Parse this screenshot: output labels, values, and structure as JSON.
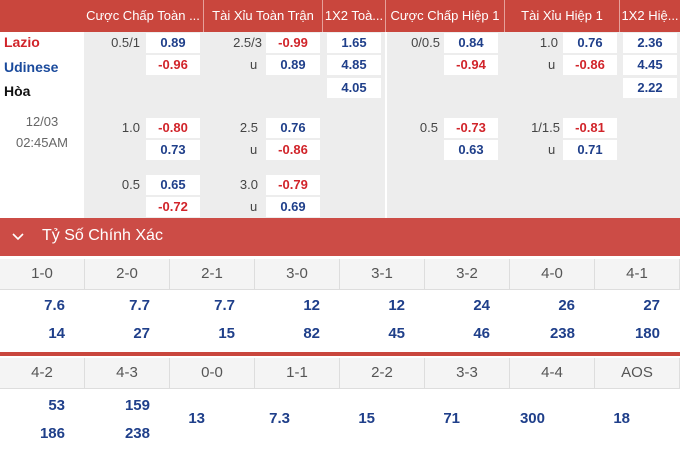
{
  "header": {
    "cols": [
      "Cược Chấp Toàn ...",
      "Tài Xỉu Toàn Trận",
      "1X2 Toà...",
      "Cược Chấp Hiệp 1",
      "Tài Xỉu Hiệp 1",
      "1X2 Hiệ..."
    ]
  },
  "match": {
    "home": "Lazio",
    "away": "Udinese",
    "draw": "Hòa",
    "date": "12/03",
    "time": "02:45AM"
  },
  "odds": {
    "row1": {
      "ft_hdp_line": "0.5/1",
      "ft_hdp_home": "0.89",
      "ft_hdp_away": "-0.96",
      "ft_ou_line": "2.5/3",
      "ft_ou_over": "-0.99",
      "ft_ou_u": "u",
      "ft_ou_under": "0.89",
      "ft_1x2_home": "1.65",
      "ft_1x2_away": "4.85",
      "ft_1x2_draw": "4.05",
      "h1_hdp_line": "0/0.5",
      "h1_hdp_home": "0.84",
      "h1_hdp_away": "-0.94",
      "h1_ou_line": "1.0",
      "h1_ou_over": "0.76",
      "h1_ou_u": "u",
      "h1_ou_under": "-0.86",
      "h1_1x2_home": "2.36",
      "h1_1x2_away": "4.45",
      "h1_1x2_draw": "2.22"
    },
    "row2": {
      "ft_hdp_line": "1.0",
      "ft_hdp_home": "-0.80",
      "ft_hdp_away": "0.73",
      "ft_ou_line": "2.5",
      "ft_ou_over": "0.76",
      "ft_ou_u": "u",
      "ft_ou_under": "-0.86",
      "h1_hdp_line": "0.5",
      "h1_hdp_home": "-0.73",
      "h1_hdp_away": "0.63",
      "h1_ou_line": "1/1.5",
      "h1_ou_over": "-0.81",
      "h1_ou_u": "u",
      "h1_ou_under": "0.71"
    },
    "row3": {
      "ft_hdp_line": "0.5",
      "ft_hdp_home": "0.65",
      "ft_hdp_away": "-0.72",
      "ft_ou_line": "3.0",
      "ft_ou_over": "-0.79",
      "ft_ou_u": "u",
      "ft_ou_under": "0.69"
    }
  },
  "correct_score": {
    "title": "Tỷ Số Chính Xác",
    "row1": [
      {
        "score": "1-0",
        "home": "7.6",
        "away": "14"
      },
      {
        "score": "2-0",
        "home": "7.7",
        "away": "27"
      },
      {
        "score": "2-1",
        "home": "7.7",
        "away": "15"
      },
      {
        "score": "3-0",
        "home": "12",
        "away": "82"
      },
      {
        "score": "3-1",
        "home": "12",
        "away": "45"
      },
      {
        "score": "3-2",
        "home": "24",
        "away": "46"
      },
      {
        "score": "4-0",
        "home": "26",
        "away": "238"
      },
      {
        "score": "4-1",
        "home": "27",
        "away": "180"
      }
    ],
    "row2": [
      {
        "score": "4-2",
        "home": "53",
        "away": "186"
      },
      {
        "score": "4-3",
        "home": "159",
        "away": "238"
      },
      {
        "score": "0-0",
        "single": "13"
      },
      {
        "score": "1-1",
        "single": "7.3"
      },
      {
        "score": "2-2",
        "single": "15"
      },
      {
        "score": "3-3",
        "single": "71"
      },
      {
        "score": "4-4",
        "single": "300"
      },
      {
        "score": "AOS",
        "single": "18"
      }
    ]
  }
}
